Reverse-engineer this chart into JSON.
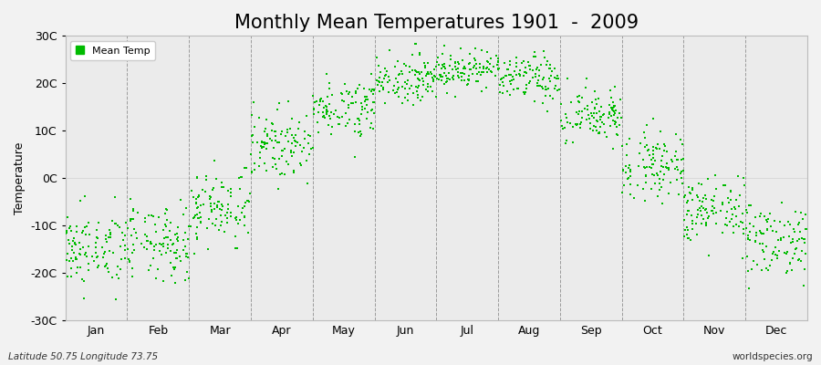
{
  "title": "Monthly Mean Temperatures 1901  -  2009",
  "ylabel": "Temperature",
  "xlabel_labels": [
    "Jan",
    "Feb",
    "Mar",
    "Apr",
    "May",
    "Jun",
    "Jul",
    "Aug",
    "Sep",
    "Oct",
    "Nov",
    "Dec"
  ],
  "xlabel_tick_positions": [
    0.5,
    1.5,
    2.5,
    3.5,
    4.5,
    5.5,
    6.5,
    7.5,
    8.5,
    9.5,
    10.5,
    11.5
  ],
  "yticks": [
    -30,
    -20,
    -10,
    0,
    10,
    20,
    30
  ],
  "ytick_labels": [
    "-30C",
    "-20C",
    "-10C",
    "0C",
    "10C",
    "20C",
    "30C"
  ],
  "ylim": [
    -30,
    30
  ],
  "xlim": [
    0,
    12
  ],
  "dot_color": "#00BB00",
  "dot_size": 2.5,
  "background_color": "#f2f2f2",
  "plot_bg_color": "#ebebeb",
  "vline_color": "#888888",
  "title_fontsize": 15,
  "axis_fontsize": 9,
  "legend_label": "Mean Temp",
  "footer_left": "Latitude 50.75 Longitude 73.75",
  "footer_right": "worldspecies.org",
  "vline_positions": [
    1,
    2,
    3,
    4,
    5,
    6,
    7,
    8,
    9,
    10,
    11
  ],
  "monthly_means": [
    -15,
    -14,
    -6,
    7,
    15,
    21,
    23,
    21,
    13,
    3,
    -7,
    -13
  ],
  "monthly_stds": [
    4.0,
    4.0,
    4.0,
    3.5,
    3.0,
    2.5,
    2.0,
    2.5,
    3.0,
    3.5,
    3.5,
    4.0
  ]
}
